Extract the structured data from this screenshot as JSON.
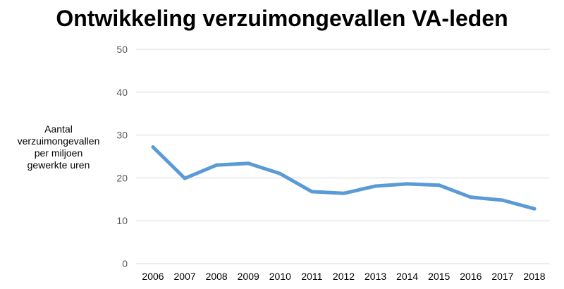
{
  "chart_data": {
    "type": "line",
    "title": "Ontwikkeling verzuimongevallen VA-leden",
    "ylabel_lines": [
      "Aantal",
      "verzuimongevallen",
      "per miljoen",
      "gewerkte uren"
    ],
    "xlabel": "",
    "categories": [
      "2006",
      "2007",
      "2008",
      "2009",
      "2010",
      "2011",
      "2012",
      "2013",
      "2014",
      "2015",
      "2016",
      "2017",
      "2018"
    ],
    "series": [
      {
        "values": [
          27.2,
          19.9,
          23.0,
          23.4,
          21.0,
          16.8,
          16.4,
          18.1,
          18.6,
          18.3,
          15.5,
          14.8,
          12.8
        ],
        "color": "#5b9bd5"
      }
    ],
    "ylim": [
      0,
      50
    ],
    "yticks": [
      0,
      10,
      20,
      30,
      40,
      50
    ],
    "grid": true,
    "gridlineColor": "#d9d9d9",
    "legend": "none"
  }
}
